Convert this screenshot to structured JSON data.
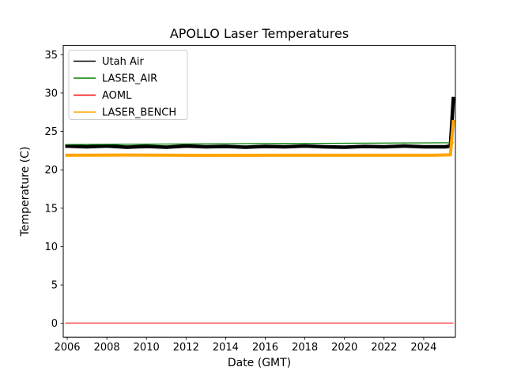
{
  "chart_data": {
    "type": "line",
    "title": "APOLLO Laser Temperatures",
    "xlabel": "Date (GMT)",
    "ylabel": "Temperature (C)",
    "xlim": [
      2005.8,
      2025.6
    ],
    "ylim": [
      -1.8,
      36.2
    ],
    "xticks": [
      2006,
      2008,
      2010,
      2012,
      2014,
      2016,
      2018,
      2020,
      2022,
      2024
    ],
    "yticks": [
      0,
      5,
      10,
      15,
      20,
      25,
      30,
      35
    ],
    "grid": false,
    "legend_position": "upper left",
    "legend_border_color": "#cccccc",
    "axes_color": "#000000",
    "background_color": "#ffffff",
    "series": [
      {
        "name": "Utah Air",
        "color": "#000000",
        "plot_width": 4.5,
        "points": [
          [
            2005.9,
            23.1
          ],
          [
            2007,
            23.0
          ],
          [
            2008,
            23.1
          ],
          [
            2009,
            22.95
          ],
          [
            2010,
            23.05
          ],
          [
            2011,
            22.95
          ],
          [
            2012,
            23.1
          ],
          [
            2013,
            23.0
          ],
          [
            2014,
            23.05
          ],
          [
            2015,
            22.95
          ],
          [
            2016,
            23.05
          ],
          [
            2017,
            23.0
          ],
          [
            2018,
            23.1
          ],
          [
            2019,
            23.0
          ],
          [
            2020,
            22.95
          ],
          [
            2021,
            23.05
          ],
          [
            2022,
            23.0
          ],
          [
            2023,
            23.1
          ],
          [
            2024,
            23.0
          ],
          [
            2025.1,
            23.0
          ],
          [
            2025.35,
            23.1
          ],
          [
            2025.5,
            29.5
          ]
        ]
      },
      {
        "name": "LASER_AIR",
        "color": "#008000",
        "plot_width": 1.3,
        "points": [
          [
            2005.9,
            23.3
          ],
          [
            2008,
            23.33
          ],
          [
            2011,
            23.36
          ],
          [
            2014,
            23.4
          ],
          [
            2017,
            23.43
          ],
          [
            2020,
            23.46
          ],
          [
            2023,
            23.5
          ],
          [
            2025.5,
            23.52
          ]
        ]
      },
      {
        "name": "AOML",
        "color": "#ff0000",
        "plot_width": 1.0,
        "points": [
          [
            2005.9,
            0.05
          ],
          [
            2025.5,
            0.05
          ]
        ]
      },
      {
        "name": "LASER_BENCH",
        "color": "#ffa500",
        "plot_width": 4.0,
        "points": [
          [
            2005.9,
            21.9
          ],
          [
            2009,
            21.92
          ],
          [
            2013,
            21.88
          ],
          [
            2017,
            21.9
          ],
          [
            2021,
            21.9
          ],
          [
            2024.5,
            21.9
          ],
          [
            2025.35,
            21.95
          ],
          [
            2025.5,
            26.5
          ]
        ]
      }
    ]
  }
}
